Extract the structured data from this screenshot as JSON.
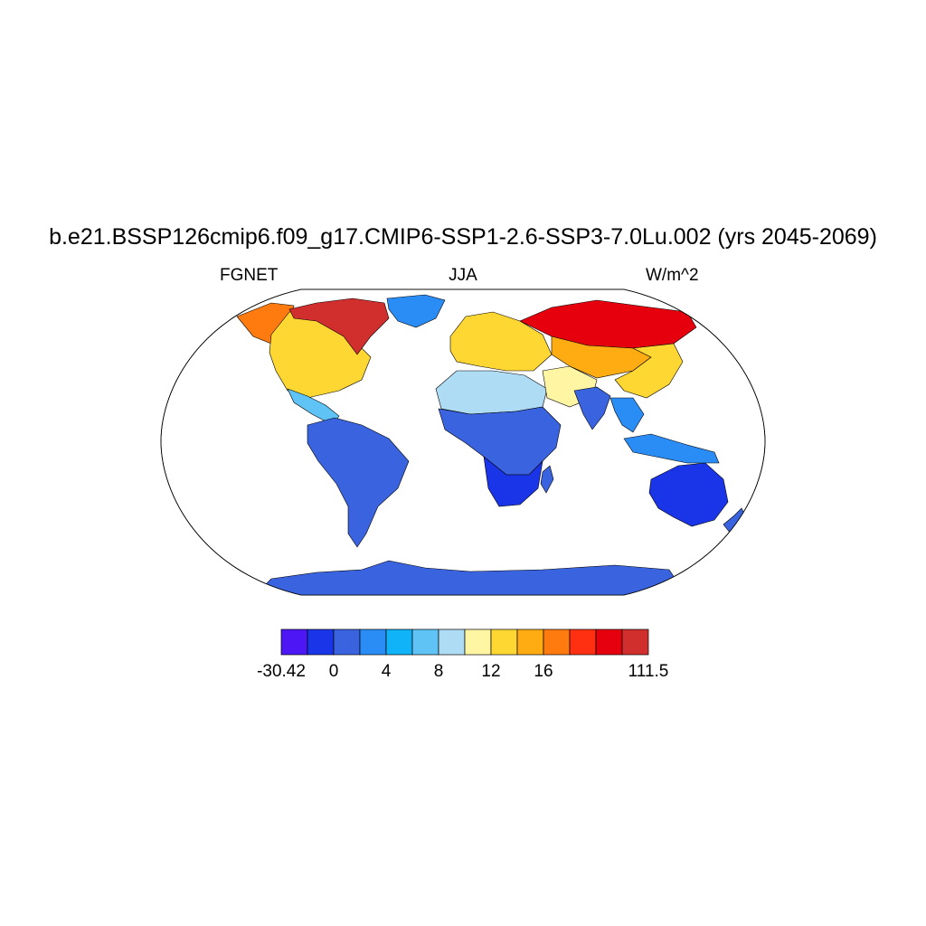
{
  "title": "b.e21.BSSP126cmip6.f09_g17.CMIP6-SSP1-2.6-SSP3-7.0Lu.002 (yrs 2045-2069)",
  "subtitle_left": "FGNET",
  "subtitle_center": "JJA",
  "subtitle_right": "W/m^2",
  "colorbar": {
    "colors": [
      "#4d17f5",
      "#1a35e8",
      "#3a63e0",
      "#2a8cf5",
      "#10b2f8",
      "#5fc3f5",
      "#afdcf5",
      "#fff5a3",
      "#ffd733",
      "#ffab12",
      "#ff7a0f",
      "#ff2f12",
      "#e6000d",
      "#d12e2e"
    ],
    "labels": [
      {
        "text": "-30.42",
        "boundary": 0
      },
      {
        "text": "0",
        "boundary": 2
      },
      {
        "text": "4",
        "boundary": 4
      },
      {
        "text": "8",
        "boundary": 6
      },
      {
        "text": "12",
        "boundary": 8
      },
      {
        "text": "16",
        "boundary": 10
      },
      {
        "text": "111.5",
        "boundary": 14
      }
    ]
  },
  "map": {
    "projection": "Robinson",
    "regions": [
      {
        "name": "arctic-canada",
        "color": "#d12e2e"
      },
      {
        "name": "alaska",
        "color": "#ff7a0f"
      },
      {
        "name": "north-america",
        "color": "#ffd733"
      },
      {
        "name": "central-america",
        "color": "#5fc3f5"
      },
      {
        "name": "greenland",
        "color": "#2a8cf5"
      },
      {
        "name": "south-america",
        "color": "#3a63e0"
      },
      {
        "name": "europe",
        "color": "#ffd733"
      },
      {
        "name": "north-africa",
        "color": "#afdcf5"
      },
      {
        "name": "central-africa",
        "color": "#3a63e0"
      },
      {
        "name": "southern-africa",
        "color": "#1a35e8"
      },
      {
        "name": "madagascar",
        "color": "#3a63e0"
      },
      {
        "name": "middle-east",
        "color": "#fff5a3"
      },
      {
        "name": "siberia",
        "color": "#e6000d"
      },
      {
        "name": "central-asia",
        "color": "#ffab12"
      },
      {
        "name": "india",
        "color": "#3a63e0"
      },
      {
        "name": "east-asia",
        "color": "#ffd733"
      },
      {
        "name": "southeast-asia",
        "color": "#2a8cf5"
      },
      {
        "name": "indonesia",
        "color": "#2a8cf5"
      },
      {
        "name": "australia",
        "color": "#1a35e8"
      },
      {
        "name": "new-zealand",
        "color": "#3a63e0"
      },
      {
        "name": "antarctica",
        "color": "#3a63e0"
      }
    ]
  }
}
